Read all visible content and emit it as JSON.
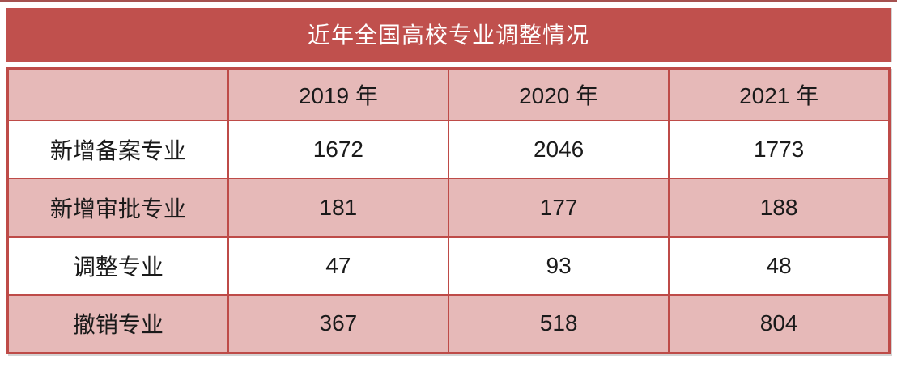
{
  "colors": {
    "title_bg": "#C0504D",
    "band_pink": "#E6B9B8",
    "border_red": "#BE4B48",
    "title_text": "#FFFFFF",
    "cell_text": "#1A1A1A",
    "top_rule": "#A5514F",
    "row_white": "#FFFFFF"
  },
  "chart_data": {
    "type": "table",
    "title": "近年全国高校专业调整情况",
    "columns": [
      "",
      "2019 年",
      "2020 年",
      "2021 年"
    ],
    "rows": [
      {
        "label": "新增备案专业",
        "values": [
          "1672",
          "2046",
          "1773"
        ]
      },
      {
        "label": "新增审批专业",
        "values": [
          "181",
          "177",
          "188"
        ]
      },
      {
        "label": "调整专业",
        "values": [
          "47",
          "93",
          "48"
        ]
      },
      {
        "label": "撤销专业",
        "values": [
          "367",
          "518",
          "804"
        ]
      }
    ],
    "layout_hints": {
      "banded_rows": true,
      "header_band": "dark-red title bar above pink column-header row",
      "title_position": "top, centered, white text"
    }
  }
}
